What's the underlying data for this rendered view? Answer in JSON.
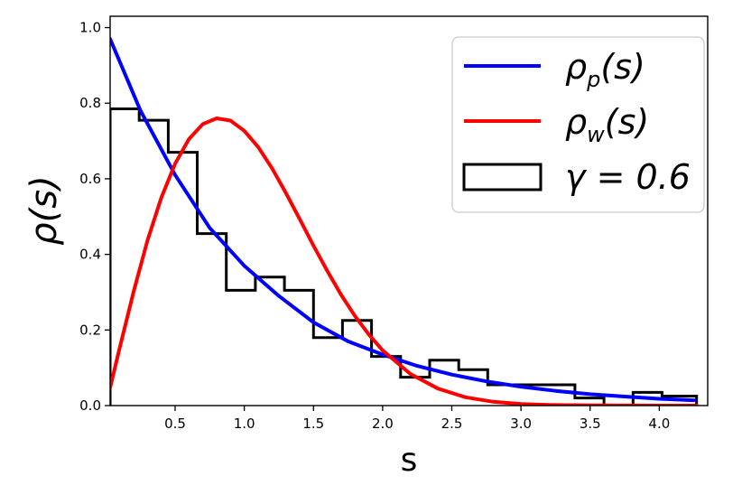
{
  "chart_data": {
    "type": "line",
    "xlabel": "s",
    "ylabel": "ρ(s)",
    "xlim": [
      0.03,
      4.35
    ],
    "ylim": [
      0.0,
      1.03
    ],
    "x_ticks": [
      "0.5",
      "1.0",
      "1.5",
      "2.0",
      "2.5",
      "3.0",
      "3.5",
      "4.0"
    ],
    "y_ticks": [
      "0.0",
      "0.2",
      "0.4",
      "0.6",
      "0.8",
      "1.0"
    ],
    "grid": false,
    "legend_position": "top-right",
    "series": [
      {
        "name": "ρ_p(s)",
        "legend_main": "ρ",
        "legend_sub": "p",
        "legend_rest": "(s)",
        "kind": "curve",
        "color": "#0000ff",
        "x": [
          0.03,
          0.25,
          0.5,
          0.75,
          1.0,
          1.25,
          1.5,
          1.75,
          2.0,
          2.25,
          2.5,
          2.75,
          3.0,
          3.25,
          3.5,
          3.75,
          4.0,
          4.25
        ],
        "y": [
          0.97,
          0.78,
          0.61,
          0.47,
          0.37,
          0.29,
          0.22,
          0.17,
          0.135,
          0.105,
          0.082,
          0.064,
          0.05,
          0.039,
          0.03,
          0.024,
          0.018,
          0.014
        ]
      },
      {
        "name": "ρ_w(s)",
        "legend_main": "ρ",
        "legend_sub": "w",
        "legend_rest": "(s)",
        "kind": "curve",
        "color": "#ff0000",
        "x": [
          0.03,
          0.1,
          0.2,
          0.3,
          0.4,
          0.5,
          0.6,
          0.7,
          0.8,
          0.9,
          1.0,
          1.1,
          1.2,
          1.3,
          1.4,
          1.5,
          1.6,
          1.7,
          1.8,
          1.9,
          2.0,
          2.2,
          2.4,
          2.6,
          2.8,
          3.0,
          3.2,
          3.5,
          4.0,
          4.27
        ],
        "y": [
          0.047,
          0.154,
          0.302,
          0.437,
          0.55,
          0.64,
          0.705,
          0.745,
          0.76,
          0.754,
          0.727,
          0.684,
          0.628,
          0.563,
          0.494,
          0.423,
          0.356,
          0.293,
          0.237,
          0.188,
          0.146,
          0.084,
          0.045,
          0.022,
          0.01,
          0.004,
          0.0018,
          0.0004,
          0.0,
          0.0
        ]
      },
      {
        "name": "γ = 0.6",
        "legend_main": "γ = 0.6",
        "kind": "histogram",
        "color": "#000000",
        "bin_edges": [
          0.03,
          0.24,
          0.45,
          0.66,
          0.87,
          1.08,
          1.29,
          1.5,
          1.71,
          1.92,
          2.13,
          2.34,
          2.55,
          2.76,
          2.97,
          3.18,
          3.39,
          3.6,
          3.81,
          4.02,
          4.27
        ],
        "values": [
          0.785,
          0.755,
          0.67,
          0.455,
          0.305,
          0.34,
          0.305,
          0.18,
          0.225,
          0.13,
          0.075,
          0.12,
          0.095,
          0.055,
          0.055,
          0.055,
          0.02,
          0.0,
          0.035,
          0.025
        ]
      }
    ]
  }
}
